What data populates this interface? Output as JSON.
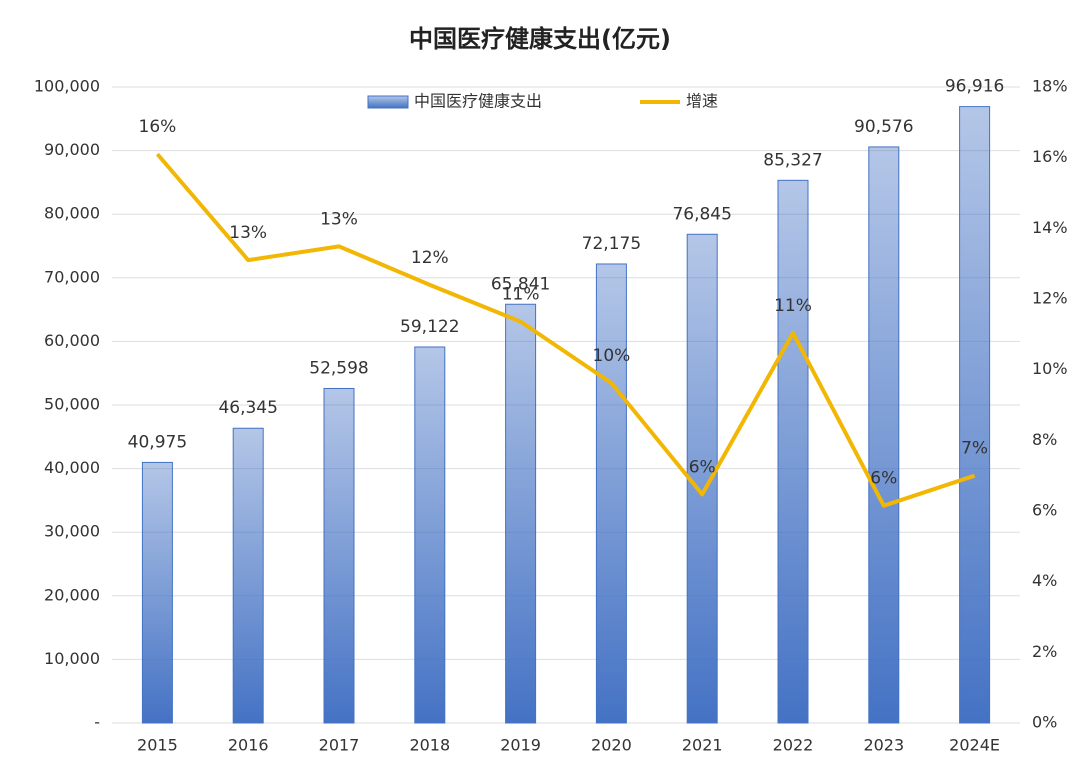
{
  "chart_data": {
    "type": "bar-line",
    "title": "中国医疗健康支出(亿元)",
    "categories": [
      "2015",
      "2016",
      "2017",
      "2018",
      "2019",
      "2020",
      "2021",
      "2022",
      "2023",
      "2024E"
    ],
    "series": [
      {
        "name": "中国医疗健康支出",
        "type": "bar",
        "color": "#4472c4",
        "values": [
          40975,
          46345,
          52598,
          59122,
          65841,
          72175,
          76845,
          85327,
          90576,
          96916
        ],
        "value_labels": [
          "40,975",
          "46,345",
          "52,598",
          "59,122",
          "65,841",
          "72,175",
          "76,845",
          "85,327",
          "90,576",
          "96,916"
        ]
      },
      {
        "name": "增速",
        "type": "line",
        "axis": "y2",
        "color": "#f2b705",
        "values": [
          16.1,
          13.1,
          13.49,
          12.4,
          11.36,
          9.62,
          6.47,
          11.04,
          6.15,
          7.0
        ],
        "value_labels": [
          "16%",
          "13%",
          "13%",
          "12%",
          "11%",
          "10%",
          "6%",
          "11%",
          "6%",
          "7%"
        ]
      }
    ],
    "ylim": [
      0,
      100000
    ],
    "yticks": [
      {
        "value": 0,
        "label": "-"
      },
      {
        "value": 10000,
        "label": "10,000"
      },
      {
        "value": 20000,
        "label": "20,000"
      },
      {
        "value": 30000,
        "label": "30,000"
      },
      {
        "value": 40000,
        "label": "40,000"
      },
      {
        "value": 50000,
        "label": "50,000"
      },
      {
        "value": 60000,
        "label": "60,000"
      },
      {
        "value": 70000,
        "label": "70,000"
      },
      {
        "value": 80000,
        "label": "80,000"
      },
      {
        "value": 90000,
        "label": "90,000"
      },
      {
        "value": 100000,
        "label": "100,000"
      }
    ],
    "y2lim": [
      0,
      18
    ],
    "y2ticks": [
      {
        "value": 0,
        "label": "0%"
      },
      {
        "value": 2,
        "label": "2%"
      },
      {
        "value": 4,
        "label": "4%"
      },
      {
        "value": 6,
        "label": "6%"
      },
      {
        "value": 8,
        "label": "8%"
      },
      {
        "value": 10,
        "label": "10%"
      },
      {
        "value": 12,
        "label": "12%"
      },
      {
        "value": 14,
        "label": "14%"
      },
      {
        "value": 16,
        "label": "16%"
      },
      {
        "value": 18,
        "label": "18%"
      }
    ],
    "grid": true,
    "legend": "top"
  }
}
